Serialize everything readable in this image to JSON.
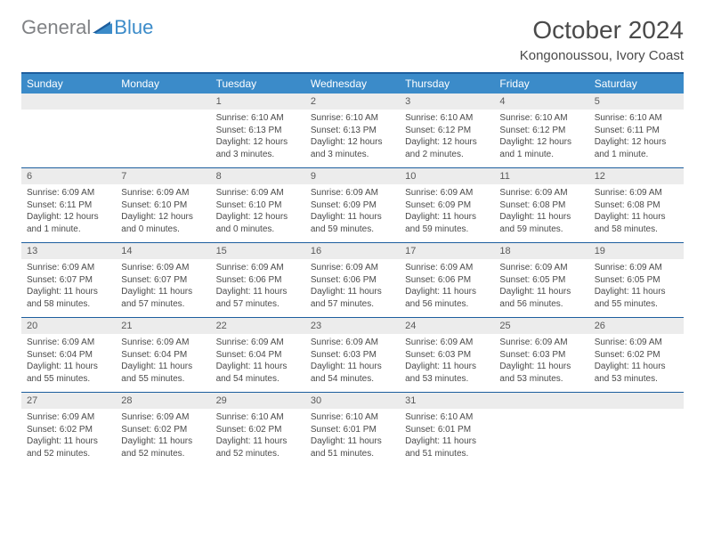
{
  "logo": {
    "general": "General",
    "blue": "Blue"
  },
  "title": "October 2024",
  "location": "Kongonoussou, Ivory Coast",
  "colors": {
    "header_bg": "#3b8bc9",
    "header_text": "#ffffff",
    "border": "#1d5e9e",
    "daynum_bg": "#ececec",
    "text": "#4a4a4a",
    "logo_gray": "#808285",
    "logo_blue": "#3b8bc9"
  },
  "days_of_week": [
    "Sunday",
    "Monday",
    "Tuesday",
    "Wednesday",
    "Thursday",
    "Friday",
    "Saturday"
  ],
  "weeks": [
    [
      null,
      null,
      {
        "n": "1",
        "sr": "Sunrise: 6:10 AM",
        "ss": "Sunset: 6:13 PM",
        "dl1": "Daylight: 12 hours",
        "dl2": "and 3 minutes."
      },
      {
        "n": "2",
        "sr": "Sunrise: 6:10 AM",
        "ss": "Sunset: 6:13 PM",
        "dl1": "Daylight: 12 hours",
        "dl2": "and 3 minutes."
      },
      {
        "n": "3",
        "sr": "Sunrise: 6:10 AM",
        "ss": "Sunset: 6:12 PM",
        "dl1": "Daylight: 12 hours",
        "dl2": "and 2 minutes."
      },
      {
        "n": "4",
        "sr": "Sunrise: 6:10 AM",
        "ss": "Sunset: 6:12 PM",
        "dl1": "Daylight: 12 hours",
        "dl2": "and 1 minute."
      },
      {
        "n": "5",
        "sr": "Sunrise: 6:10 AM",
        "ss": "Sunset: 6:11 PM",
        "dl1": "Daylight: 12 hours",
        "dl2": "and 1 minute."
      }
    ],
    [
      {
        "n": "6",
        "sr": "Sunrise: 6:09 AM",
        "ss": "Sunset: 6:11 PM",
        "dl1": "Daylight: 12 hours",
        "dl2": "and 1 minute."
      },
      {
        "n": "7",
        "sr": "Sunrise: 6:09 AM",
        "ss": "Sunset: 6:10 PM",
        "dl1": "Daylight: 12 hours",
        "dl2": "and 0 minutes."
      },
      {
        "n": "8",
        "sr": "Sunrise: 6:09 AM",
        "ss": "Sunset: 6:10 PM",
        "dl1": "Daylight: 12 hours",
        "dl2": "and 0 minutes."
      },
      {
        "n": "9",
        "sr": "Sunrise: 6:09 AM",
        "ss": "Sunset: 6:09 PM",
        "dl1": "Daylight: 11 hours",
        "dl2": "and 59 minutes."
      },
      {
        "n": "10",
        "sr": "Sunrise: 6:09 AM",
        "ss": "Sunset: 6:09 PM",
        "dl1": "Daylight: 11 hours",
        "dl2": "and 59 minutes."
      },
      {
        "n": "11",
        "sr": "Sunrise: 6:09 AM",
        "ss": "Sunset: 6:08 PM",
        "dl1": "Daylight: 11 hours",
        "dl2": "and 59 minutes."
      },
      {
        "n": "12",
        "sr": "Sunrise: 6:09 AM",
        "ss": "Sunset: 6:08 PM",
        "dl1": "Daylight: 11 hours",
        "dl2": "and 58 minutes."
      }
    ],
    [
      {
        "n": "13",
        "sr": "Sunrise: 6:09 AM",
        "ss": "Sunset: 6:07 PM",
        "dl1": "Daylight: 11 hours",
        "dl2": "and 58 minutes."
      },
      {
        "n": "14",
        "sr": "Sunrise: 6:09 AM",
        "ss": "Sunset: 6:07 PM",
        "dl1": "Daylight: 11 hours",
        "dl2": "and 57 minutes."
      },
      {
        "n": "15",
        "sr": "Sunrise: 6:09 AM",
        "ss": "Sunset: 6:06 PM",
        "dl1": "Daylight: 11 hours",
        "dl2": "and 57 minutes."
      },
      {
        "n": "16",
        "sr": "Sunrise: 6:09 AM",
        "ss": "Sunset: 6:06 PM",
        "dl1": "Daylight: 11 hours",
        "dl2": "and 57 minutes."
      },
      {
        "n": "17",
        "sr": "Sunrise: 6:09 AM",
        "ss": "Sunset: 6:06 PM",
        "dl1": "Daylight: 11 hours",
        "dl2": "and 56 minutes."
      },
      {
        "n": "18",
        "sr": "Sunrise: 6:09 AM",
        "ss": "Sunset: 6:05 PM",
        "dl1": "Daylight: 11 hours",
        "dl2": "and 56 minutes."
      },
      {
        "n": "19",
        "sr": "Sunrise: 6:09 AM",
        "ss": "Sunset: 6:05 PM",
        "dl1": "Daylight: 11 hours",
        "dl2": "and 55 minutes."
      }
    ],
    [
      {
        "n": "20",
        "sr": "Sunrise: 6:09 AM",
        "ss": "Sunset: 6:04 PM",
        "dl1": "Daylight: 11 hours",
        "dl2": "and 55 minutes."
      },
      {
        "n": "21",
        "sr": "Sunrise: 6:09 AM",
        "ss": "Sunset: 6:04 PM",
        "dl1": "Daylight: 11 hours",
        "dl2": "and 55 minutes."
      },
      {
        "n": "22",
        "sr": "Sunrise: 6:09 AM",
        "ss": "Sunset: 6:04 PM",
        "dl1": "Daylight: 11 hours",
        "dl2": "and 54 minutes."
      },
      {
        "n": "23",
        "sr": "Sunrise: 6:09 AM",
        "ss": "Sunset: 6:03 PM",
        "dl1": "Daylight: 11 hours",
        "dl2": "and 54 minutes."
      },
      {
        "n": "24",
        "sr": "Sunrise: 6:09 AM",
        "ss": "Sunset: 6:03 PM",
        "dl1": "Daylight: 11 hours",
        "dl2": "and 53 minutes."
      },
      {
        "n": "25",
        "sr": "Sunrise: 6:09 AM",
        "ss": "Sunset: 6:03 PM",
        "dl1": "Daylight: 11 hours",
        "dl2": "and 53 minutes."
      },
      {
        "n": "26",
        "sr": "Sunrise: 6:09 AM",
        "ss": "Sunset: 6:02 PM",
        "dl1": "Daylight: 11 hours",
        "dl2": "and 53 minutes."
      }
    ],
    [
      {
        "n": "27",
        "sr": "Sunrise: 6:09 AM",
        "ss": "Sunset: 6:02 PM",
        "dl1": "Daylight: 11 hours",
        "dl2": "and 52 minutes."
      },
      {
        "n": "28",
        "sr": "Sunrise: 6:09 AM",
        "ss": "Sunset: 6:02 PM",
        "dl1": "Daylight: 11 hours",
        "dl2": "and 52 minutes."
      },
      {
        "n": "29",
        "sr": "Sunrise: 6:10 AM",
        "ss": "Sunset: 6:02 PM",
        "dl1": "Daylight: 11 hours",
        "dl2": "and 52 minutes."
      },
      {
        "n": "30",
        "sr": "Sunrise: 6:10 AM",
        "ss": "Sunset: 6:01 PM",
        "dl1": "Daylight: 11 hours",
        "dl2": "and 51 minutes."
      },
      {
        "n": "31",
        "sr": "Sunrise: 6:10 AM",
        "ss": "Sunset: 6:01 PM",
        "dl1": "Daylight: 11 hours",
        "dl2": "and 51 minutes."
      },
      null,
      null
    ]
  ]
}
